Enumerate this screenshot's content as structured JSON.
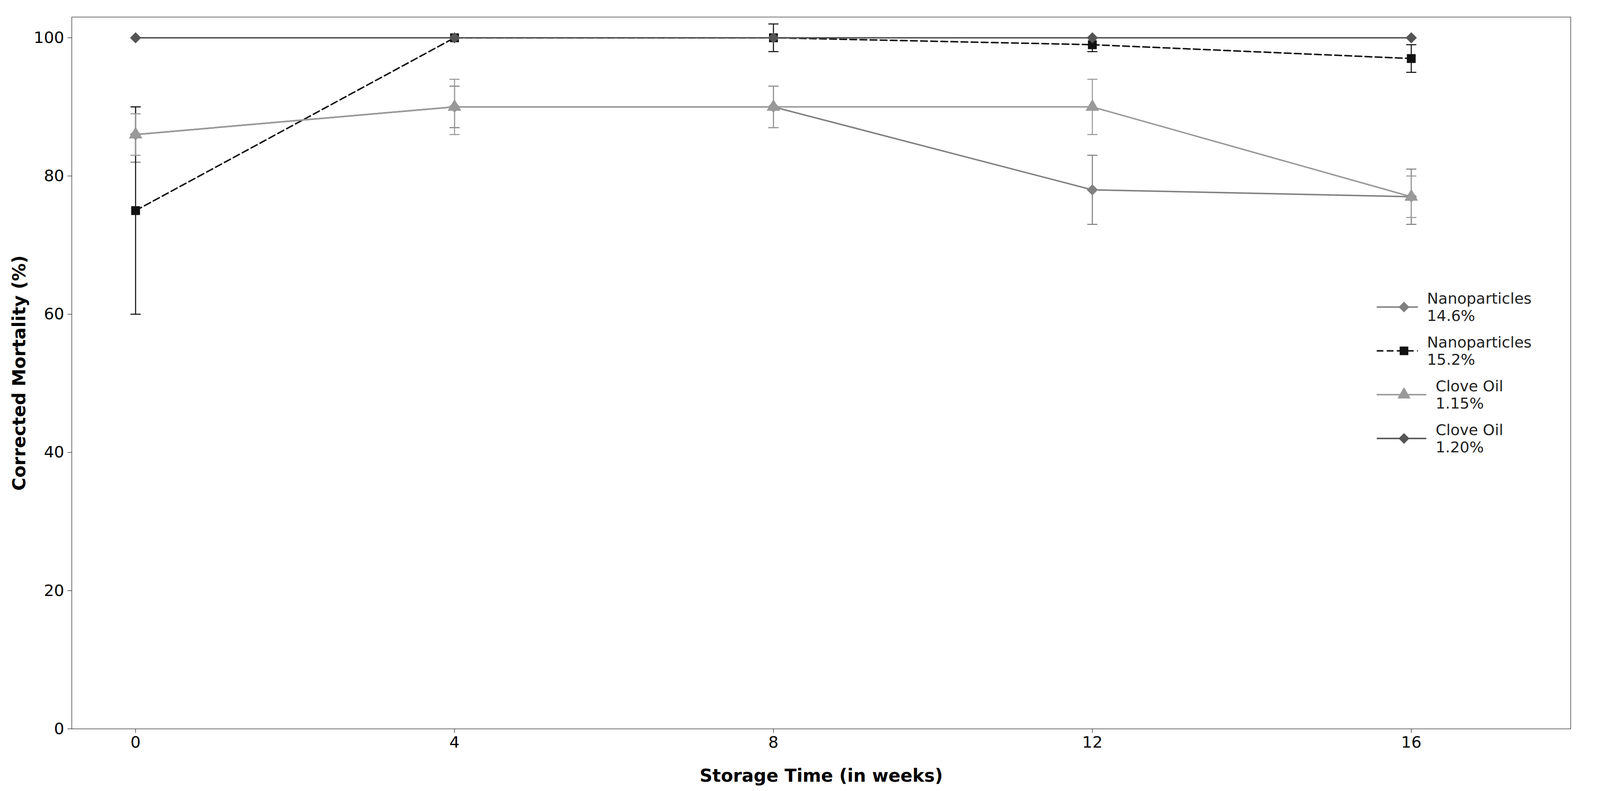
{
  "chart_data": {
    "type": "line",
    "xlabel": "Storage Time (in weeks)",
    "ylabel": "Corrected Mortality (%)",
    "x": [
      0,
      4,
      8,
      12,
      16
    ],
    "xlim": [
      -0.8,
      18
    ],
    "xticks": [
      0,
      4,
      8,
      12,
      16
    ],
    "ylim": [
      0,
      103
    ],
    "yticks": [
      0,
      20,
      40,
      60,
      80,
      100
    ],
    "grid": false,
    "legend": "center right",
    "series": [
      {
        "name": "Nanoparticles 14.6%",
        "color": "#808080",
        "marker": "diamond",
        "line_style": "solid",
        "values": [
          86,
          90,
          90,
          78,
          77
        ],
        "yerr": [
          4,
          3,
          3,
          5,
          4
        ]
      },
      {
        "name": "Nanoparticles 15.2%",
        "color": "#111111",
        "marker": "square",
        "line_style": "dashed",
        "values": [
          75,
          100,
          100,
          99,
          97
        ],
        "yerr": [
          15,
          0,
          2,
          1,
          2
        ]
      },
      {
        "name": "Clove Oil 1.15%",
        "color": "#999999",
        "marker": "triangle",
        "line_style": "solid",
        "values": [
          86,
          90,
          90,
          90,
          77
        ],
        "yerr": [
          3,
          4,
          3,
          4,
          3
        ]
      },
      {
        "name": "Clove Oil 1.20%",
        "color": "#555555",
        "marker": "diamond",
        "line_style": "solid",
        "values": [
          100,
          100,
          100,
          100,
          100
        ],
        "yerr": [
          0,
          0,
          0,
          0,
          0
        ]
      }
    ]
  }
}
